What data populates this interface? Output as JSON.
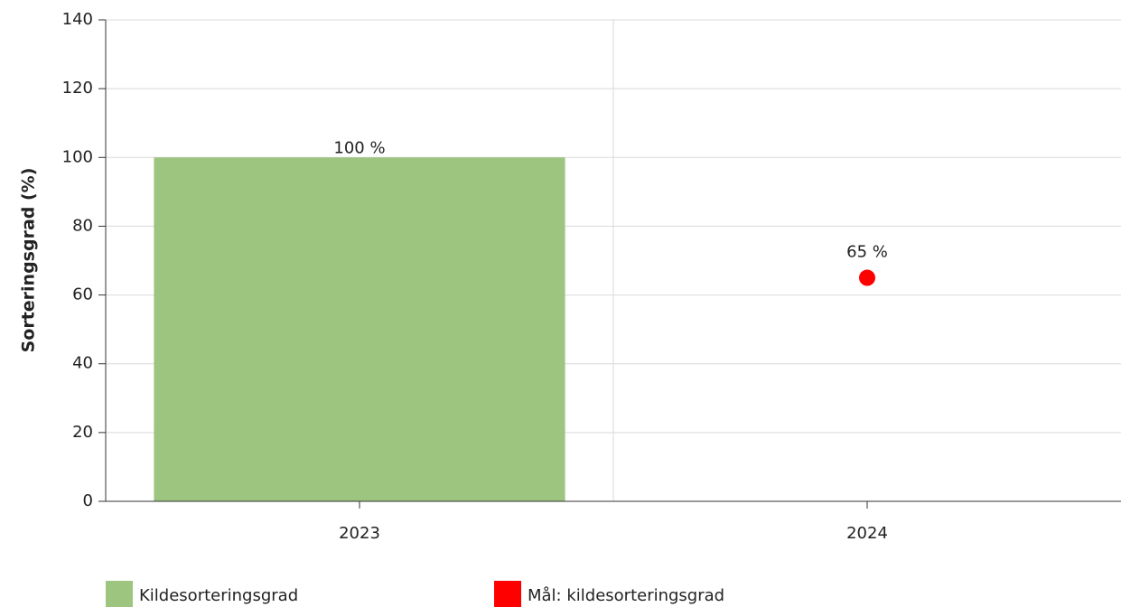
{
  "chart_data": {
    "type": "bar",
    "y_label": "Sorteringsgrad (%)",
    "categories": [
      "2023",
      "2024"
    ],
    "series": [
      {
        "name": "Kildesorteringsgrad",
        "type": "bar",
        "color": "#9dc57f",
        "values": [
          100,
          null
        ],
        "value_labels": [
          "100 %",
          null
        ]
      },
      {
        "name": "Mål: kildesorteringsgrad",
        "type": "scatter",
        "color": "#ff0000",
        "values": [
          null,
          65
        ],
        "value_labels": [
          null,
          "65 %"
        ]
      }
    ],
    "ylim": [
      0,
      140
    ],
    "yticks": [
      0,
      20,
      40,
      60,
      80,
      100,
      120,
      140
    ],
    "grid": true,
    "legend": "bottom"
  }
}
